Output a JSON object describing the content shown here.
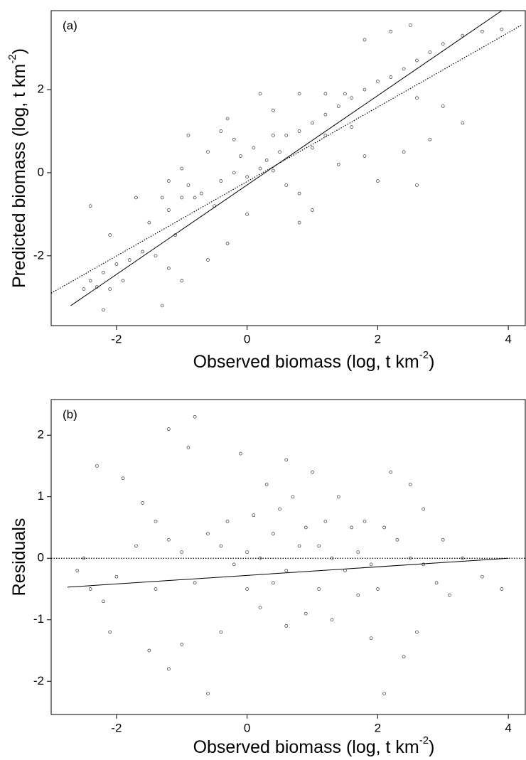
{
  "chart_data": [
    {
      "type": "scatter",
      "panel_label": "(a)",
      "xlabel": {
        "text": "Observed biomass (log, t km",
        "superscript": "-2",
        "tail": ")"
      },
      "ylabel": {
        "text": "Predicted biomass (log, t km",
        "superscript": "-2",
        "tail": ")"
      },
      "xlim": [
        -3.0,
        4.26
      ],
      "ylim": [
        -3.68,
        3.9
      ],
      "xticks": [
        -2,
        0,
        2,
        4
      ],
      "yticks": [
        -2,
        0,
        2
      ],
      "series": [
        {
          "color": "#333333",
          "x": [
            -2.5,
            -2.3,
            -2.1,
            -2.4,
            -2.2,
            -2.0,
            -1.8,
            -1.6,
            -1.4,
            -1.2,
            -1.0,
            -1.3,
            -2.2,
            -1.5,
            -1.7,
            -1.3,
            -1.0,
            -0.8,
            -1.2,
            -0.9,
            -0.7,
            -0.5,
            -0.3,
            -0.6,
            -0.4,
            -0.2,
            0.0,
            0.2,
            0.4,
            0.3,
            0.5,
            0.1,
            -0.2,
            -0.4,
            -0.6,
            -1.0,
            -1.2,
            0.6,
            0.8,
            1.0,
            0.0,
            0.6,
            0.8,
            1.0,
            1.2,
            1.4,
            1.6,
            1.8,
            2.0,
            2.2,
            2.4,
            2.6,
            2.8,
            3.0,
            3.3,
            3.6,
            3.9,
            2.5,
            2.2,
            1.8,
            1.5,
            1.2,
            0.8,
            0.4,
            0.2,
            1.0,
            1.4,
            1.8,
            2.0,
            2.4,
            2.8,
            3.0,
            3.3,
            2.6,
            1.6,
            1.2,
            0.4,
            -0.1,
            -0.9,
            -0.3,
            0.8,
            -2.4,
            -2.1,
            -1.9,
            -1.1,
            2.6
          ],
          "values": [
            -2.8,
            -2.75,
            -2.8,
            -2.6,
            -2.4,
            -2.2,
            -2.1,
            -1.9,
            -2.0,
            -2.3,
            -2.6,
            -3.2,
            -3.3,
            -1.2,
            -0.6,
            -0.6,
            -0.6,
            -0.6,
            -0.9,
            -0.3,
            -0.5,
            -0.8,
            -1.7,
            -2.1,
            -0.2,
            0.0,
            -0.1,
            0.1,
            0.05,
            0.3,
            0.5,
            0.6,
            0.8,
            1.0,
            0.5,
            0.1,
            -0.2,
            -0.3,
            -0.5,
            -0.9,
            -1.0,
            0.9,
            1.0,
            1.2,
            1.4,
            1.6,
            1.8,
            2.0,
            2.2,
            2.3,
            2.5,
            2.7,
            2.9,
            3.1,
            3.3,
            3.4,
            3.45,
            3.55,
            3.4,
            3.2,
            1.9,
            1.9,
            1.9,
            1.5,
            1.9,
            0.6,
            0.2,
            0.4,
            -0.2,
            0.5,
            0.8,
            1.6,
            1.2,
            1.8,
            1.1,
            0.9,
            0.9,
            0.4,
            0.9,
            1.3,
            -1.2,
            -0.8,
            -1.5,
            -2.6,
            -1.5,
            -0.3
          ]
        },
        {
          "color": "#000000",
          "line": "solid",
          "x": [
            -2.7,
            3.9
          ],
          "values": [
            -3.2,
            3.9
          ]
        },
        {
          "color": "#000000",
          "line": "dotted",
          "x": [
            -3.0,
            4.2
          ],
          "values": [
            -2.9,
            3.55
          ]
        }
      ]
    },
    {
      "type": "scatter",
      "panel_label": "(b)",
      "xlabel": {
        "text": "Observed biomass (log, t km",
        "superscript": "-2",
        "tail": ")"
      },
      "ylabel": {
        "text": "Residuals"
      },
      "xlim": [
        -3.0,
        4.26
      ],
      "ylim": [
        -2.54,
        2.58
      ],
      "xticks": [
        -2,
        0,
        2,
        4
      ],
      "yticks": [
        -2,
        -1,
        0,
        1,
        2
      ],
      "series": [
        {
          "color": "#333333",
          "x": [
            -2.6,
            -2.4,
            -2.2,
            -2.1,
            -2.3,
            -2.0,
            -1.9,
            -1.6,
            -1.4,
            -1.2,
            -1.0,
            -1.2,
            -0.9,
            -0.8,
            -1.5,
            -1.2,
            -1.0,
            -1.4,
            -0.6,
            -0.4,
            -0.2,
            0.0,
            0.2,
            0.4,
            0.6,
            0.1,
            0.3,
            0.5,
            0.7,
            0.9,
            1.1,
            1.3,
            1.5,
            1.7,
            1.9,
            2.1,
            2.3,
            2.5,
            2.7,
            2.5,
            2.2,
            2.7,
            3.0,
            3.3,
            3.6,
            3.9,
            0.2,
            0.6,
            0.9,
            1.3,
            1.7,
            2.1,
            2.4,
            1.9,
            -0.4,
            -0.6,
            -0.1,
            0.6,
            1.0,
            1.4,
            1.8,
            2.9,
            3.1,
            -0.8,
            0.0,
            1.1,
            1.6,
            2.0,
            -1.7,
            -2.5,
            1.2,
            0.8,
            -0.3,
            2.6,
            0.4
          ],
          "values": [
            -0.2,
            -0.5,
            -0.7,
            -1.2,
            1.5,
            -0.3,
            1.3,
            0.9,
            0.6,
            0.3,
            0.1,
            2.1,
            1.8,
            2.3,
            -1.5,
            -1.8,
            -1.4,
            -0.5,
            0.4,
            0.2,
            -0.1,
            0.1,
            0.0,
            -0.4,
            -0.2,
            0.7,
            1.2,
            0.8,
            1.0,
            0.5,
            0.2,
            0.0,
            -0.2,
            0.1,
            -0.1,
            0.5,
            0.3,
            0.0,
            -0.1,
            1.2,
            1.4,
            0.8,
            0.3,
            0.0,
            -0.3,
            -0.5,
            -0.8,
            -1.1,
            -0.9,
            -1.0,
            -0.6,
            -2.2,
            -1.6,
            -1.3,
            -1.2,
            -2.2,
            1.7,
            1.6,
            1.4,
            1.0,
            0.6,
            -0.4,
            -0.6,
            -0.4,
            -0.5,
            -0.5,
            0.5,
            -0.5,
            0.2,
            0.0,
            0.6,
            0.2,
            0.6,
            -1.2,
            0.4
          ]
        },
        {
          "color": "#000000",
          "line": "solid",
          "x": [
            -2.75,
            4.0
          ],
          "values": [
            -0.47,
            0.0
          ]
        },
        {
          "color": "#000000",
          "line": "dotted",
          "x": [
            -3.0,
            4.26
          ],
          "values": [
            0.0,
            0.0
          ]
        }
      ]
    }
  ]
}
